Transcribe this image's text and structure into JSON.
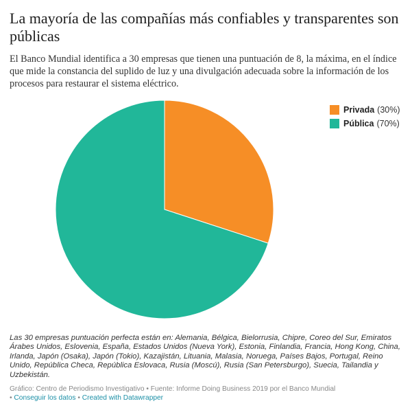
{
  "header": {
    "title": "La mayoría de las compañías más confiables y transparentes son públicas",
    "subtitle": "El Banco Mundial identifica a 30 empresas que tienen una puntuación de 8, la máxima, en el índice que mide la constancia del suplido de luz y una divulgación adecuada sobre la información de los procesos para restaurar el sistema eléctrico."
  },
  "chart_data": {
    "type": "pie",
    "title": "La mayoría de las compañías más confiables y transparentes son públicas",
    "categories": [
      "Privada",
      "Pública"
    ],
    "values": [
      30,
      70
    ],
    "unit": "%",
    "colors": [
      "#f68e26",
      "#21b799"
    ],
    "legend_position": "top-right",
    "legend_labels": [
      "(30%)",
      "(70%)"
    ]
  },
  "note": "Las 30 empresas puntuación perfecta están en: Alemania, Bélgica, Bielorrusia, Chipre, Coreo del Sur, Emiratos Árabes Unidos, Eslovenia, España, Estados Unidos (Nueva York), Estonia, Finlandia, Francia, Hong Kong, China, Irlanda, Japón (Osaka), Japón (Tokio), Kazajistán, Lituania, Malasia, Noruega, Países Bajos, Portugal, Reino Unido, República Checa, República Eslovaca, Rusia (Moscú), Rusia (San Petersburgo), Suecia, Tailandia y Uzbekistán.",
  "footer": {
    "credit": "Gráfico: Centro de Periodismo Investigativo",
    "separator": "•",
    "source": "Fuente: Informe Doing Business 2019 por el Banco Mundial",
    "get_data": "Conseguir los datos",
    "created_with": "Created with Datawrapper"
  }
}
